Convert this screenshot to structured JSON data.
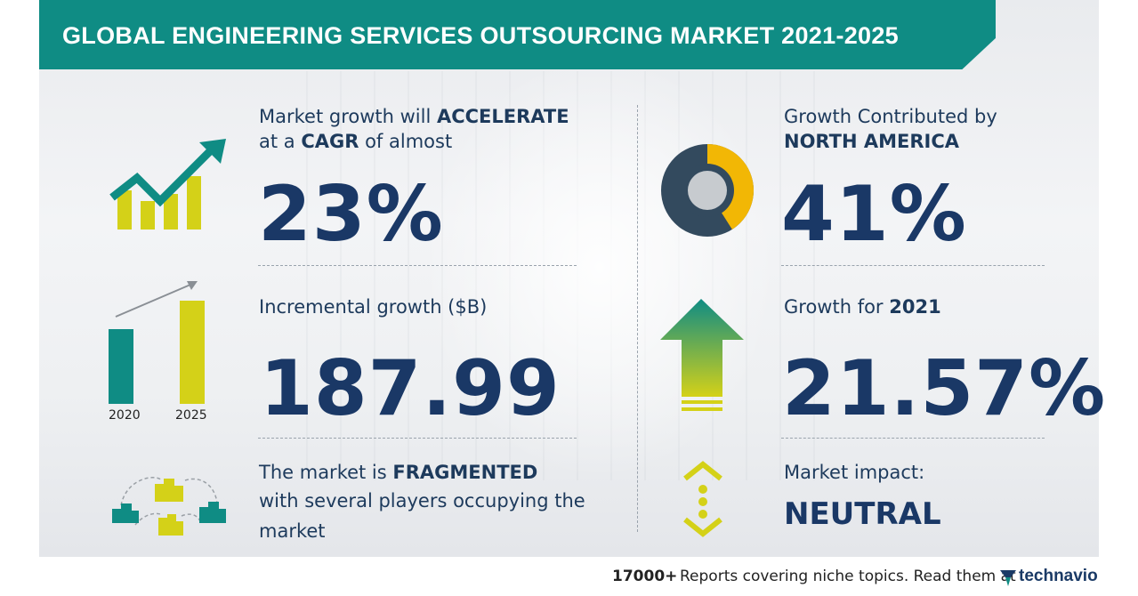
{
  "banner": {
    "title": "GLOBAL ENGINEERING SERVICES OUTSOURCING MARKET 2021-2025"
  },
  "cagr": {
    "line1_pre": "Market growth will ",
    "line1_bold": "ACCELERATE",
    "line2_pre": "at a ",
    "line2_bold": "CAGR",
    "line2_post": " of almost",
    "value": "23%"
  },
  "incremental": {
    "label": "Incremental growth ($B)",
    "value": "187.99",
    "years": [
      "2020",
      "2025"
    ]
  },
  "fragmented": {
    "line1_pre": "The market is ",
    "line1_bold": "FRAGMENTED",
    "line2": "with several players occupying the",
    "line3": "market"
  },
  "region": {
    "line1": "Growth Contributed by",
    "line2": "NORTH AMERICA",
    "value": "41%",
    "share": 0.41
  },
  "growth_year": {
    "label_pre": "Growth for ",
    "label_bold": "2021",
    "value": "21.57%"
  },
  "impact": {
    "label": "Market impact:",
    "value": "NEUTRAL"
  },
  "footer": {
    "count": "17000+",
    "text": "Reports covering niche topics. Read them at",
    "brand": "technavio"
  },
  "colors": {
    "teal": "#0f8c84",
    "navy": "#1a3866",
    "yellow": "#d4d118",
    "donut_yellow": "#f2b705",
    "donut_dark": "#334a5e"
  }
}
